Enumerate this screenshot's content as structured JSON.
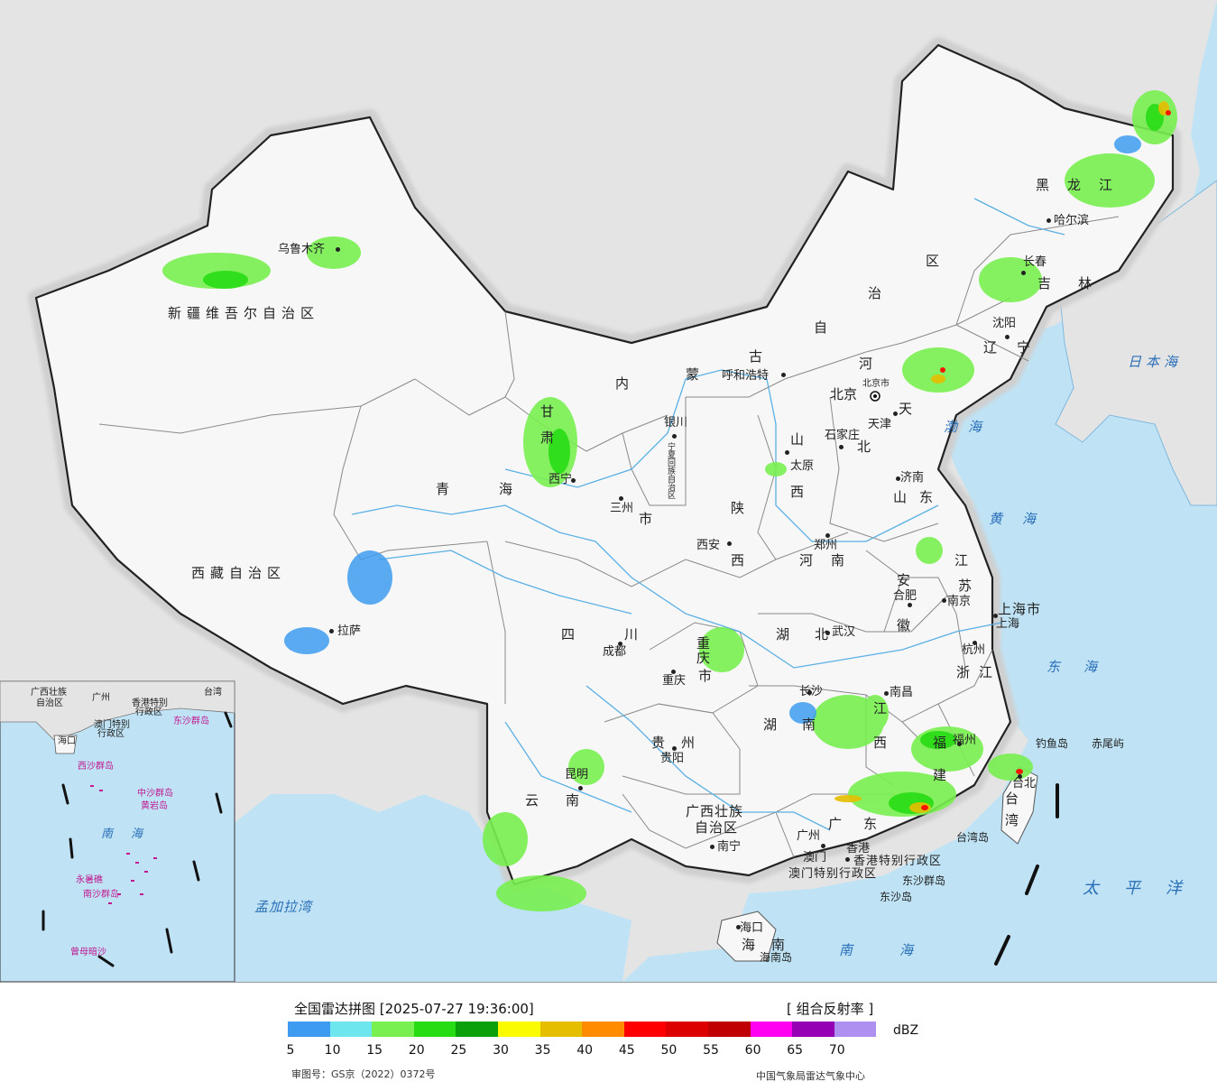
{
  "legend": {
    "title": "全国雷达拼图 [2025-07-27 19:36:00]",
    "product": "[ 组合反射率 ]",
    "unit": "dBZ",
    "colors": [
      "#3d9cf0",
      "#6ee6ee",
      "#78f050",
      "#28dc14",
      "#0aa00a",
      "#fafa00",
      "#e6be00",
      "#ff8c00",
      "#ff0000",
      "#dc0000",
      "#c00000",
      "#ff00f0",
      "#9600b4",
      "#ae90f0"
    ],
    "ticks": [
      "5",
      "10",
      "15",
      "20",
      "25",
      "30",
      "35",
      "40",
      "45",
      "50",
      "55",
      "60",
      "65",
      "70"
    ],
    "review_number": "审图号：GS京（2022）0372号",
    "agency": "中国气象局雷达气象中心"
  },
  "provinces": {
    "xinjiang": "新疆维吾尔自治区",
    "xizang": "西藏自治区",
    "qinghai": "青海",
    "gansu": "甘肃",
    "neimenggu_1": "内",
    "neimenggu_2": "蒙",
    "neimenggu_3": "古",
    "neimenggu_4": "自",
    "neimenggu_5": "治",
    "neimenggu_6": "区",
    "heilongjiang": "黑龙江",
    "jilin": "吉林",
    "liaoning": "辽宁",
    "hebei_1": "河",
    "hebei_2": "北",
    "shanxi_1": "山",
    "shanxi_2": "西",
    "shaanxi_1": "陕",
    "shaanxi_2": "西",
    "shandong": "山东",
    "henan": "河南",
    "jiangsu_1": "江",
    "jiangsu_2": "苏",
    "anhui_1": "安",
    "anhui_2": "徽",
    "sichuan": "四川",
    "chongqing_1": "重",
    "chongqing_2": "庆",
    "chongqing_3": "市",
    "hubei": "湖北",
    "hunan": "湖南",
    "jiangxi_1": "江",
    "jiangxi_2": "西",
    "zhejiang": "浙江",
    "fujian_1": "福",
    "fujian_2": "建",
    "guizhou": "贵州",
    "yunnan": "云南",
    "guangxi_1": "广西壮族",
    "guangxi_2": "自治区",
    "guangdong": "广东",
    "hainan": "海南",
    "taiwan_1": "台",
    "taiwan_2": "湾",
    "ningxia": "宁夏回族自治区",
    "gansu_city": "市",
    "shanghai": "上海市",
    "hongkong": "香港特别行政区",
    "macau": "澳门特别行政区"
  },
  "cities": {
    "urumqi": "乌鲁木齐",
    "lhasa": "拉萨",
    "xining": "西宁",
    "lanzhou": "三州",
    "yinchuan": "银川",
    "hohhot": "呼和浩特",
    "beijing": "北京",
    "beijing_city": "北京市",
    "tianjin": "天津",
    "tianjin_short": "天",
    "shijiazhuang": "石家庄",
    "taiyuan": "太原",
    "jinan": "济南",
    "zhengzhou": "郑州",
    "xian": "西安",
    "hefei": "合肥",
    "nanjing": "南京",
    "shanghai": "上海",
    "hangzhou": "杭州",
    "wuhan": "武汉",
    "chengdu": "成都",
    "chongqing": "重庆",
    "changsha": "长沙",
    "nanchang": "南昌",
    "fuzhou": "福州",
    "guiyang": "贵阳",
    "kunming": "昆明",
    "nanning": "南宁",
    "guangzhou": "广州",
    "hongkong": "香港",
    "macau": "澳门",
    "haikou": "海口",
    "taipei": "台北",
    "harbin": "哈尔滨",
    "changchun": "长春",
    "shenyang": "沈阳"
  },
  "islands": {
    "diaoyu": "钓鱼岛",
    "chiwei": "赤尾屿",
    "taiwan_island": "台湾岛",
    "dongsha_islands": "东沙群岛",
    "dongsha_island": "东沙岛",
    "hainan_island": "海南岛"
  },
  "seas": {
    "japan_sea": "日本海",
    "bohai": "渤海",
    "yellow_sea": "黄海",
    "east_sea": "东海",
    "pacific": "太平洋",
    "south_sea": "南海",
    "bengal": "孟加拉湾"
  },
  "inset": {
    "guangxi": "广西壮族",
    "guangxi2": "自治区",
    "guangdong": "广州",
    "hongkong": "香港特别",
    "hongkong2": "行政区",
    "macau": "澳门特别",
    "macau2": "行政区",
    "taiwan": "台湾",
    "dongsha": "东沙群岛",
    "hainan": "海口",
    "xisha": "西沙群岛",
    "zhongsha": "中沙群岛",
    "huangyan": "黄岩岛",
    "nansha": "南沙群岛",
    "yongshu": "永暑礁",
    "zengmu": "曾母暗沙",
    "south_sea": "南海"
  }
}
